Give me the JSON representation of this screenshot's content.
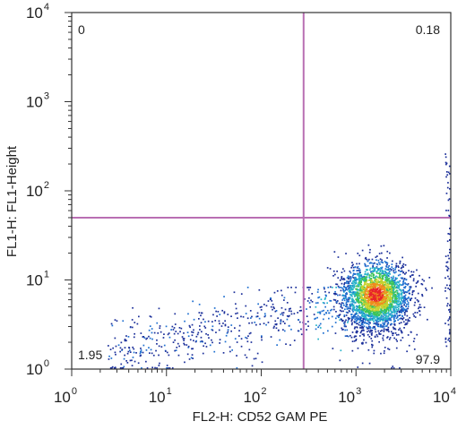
{
  "chart_data": {
    "type": "scatter",
    "plot_style": "flow cytometry density dot plot",
    "xlabel": "FL2-H: CD52 GAM PE",
    "ylabel": "FL1-H:  FL1-Height",
    "x_scale": "log",
    "y_scale": "log",
    "xlim": [
      1,
      10000
    ],
    "ylim": [
      1,
      10000
    ],
    "x_ticks": [
      {
        "base": "10",
        "exp": "0"
      },
      {
        "base": "10",
        "exp": "1"
      },
      {
        "base": "10",
        "exp": "2"
      },
      {
        "base": "10",
        "exp": "3"
      },
      {
        "base": "10",
        "exp": "4"
      }
    ],
    "y_ticks": [
      {
        "base": "10",
        "exp": "0"
      },
      {
        "base": "10",
        "exp": "1"
      },
      {
        "base": "10",
        "exp": "2"
      },
      {
        "base": "10",
        "exp": "3"
      },
      {
        "base": "10",
        "exp": "4"
      }
    ],
    "gates": {
      "x": 280,
      "y": 50
    },
    "quadrant_labels": {
      "upper_left": "0",
      "upper_right": "0.18",
      "lower_left": "1.95",
      "lower_right": "97.9"
    },
    "population": {
      "main_cluster_center": {
        "x": 1600,
        "y": 7
      },
      "main_cluster_share_percent": 97.9,
      "tail_direction": "low FL2 values spread toward x ≈ 3, y ≈ 1–10"
    },
    "colors": {
      "gate_line": "#b96fb3",
      "density_scale": [
        "#1b2f9a",
        "#1e6fd0",
        "#26b3c9",
        "#3cc45a",
        "#c9d22e",
        "#f08a1e",
        "#e8242a"
      ]
    },
    "grid": false,
    "legend": "none"
  }
}
